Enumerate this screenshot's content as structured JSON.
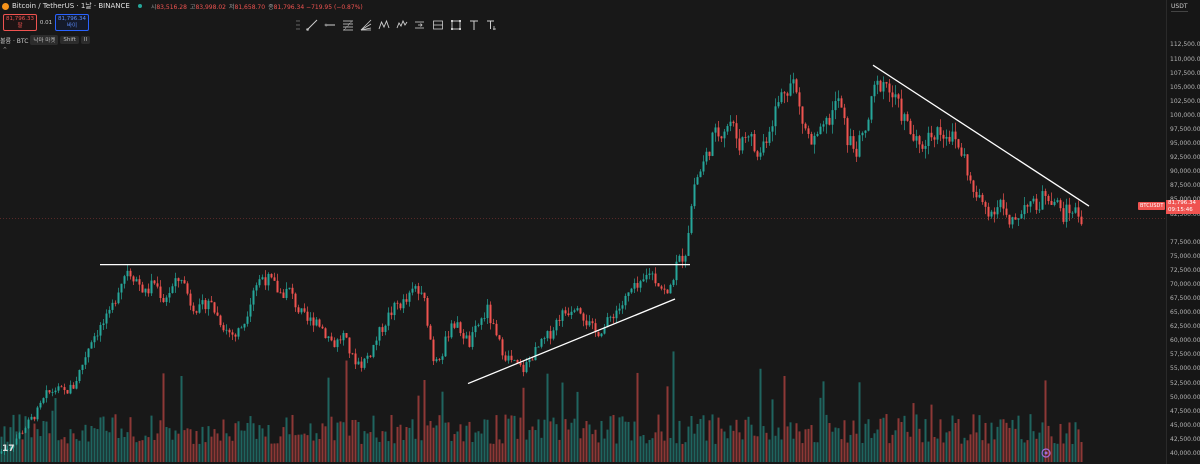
{
  "header": {
    "symbol": "Bitcoin / TetherUS · 1날 · BINANCE",
    "ohlc": [
      {
        "key": "시",
        "value": "83,516.28"
      },
      {
        "key": "고",
        "value": "83,998.02"
      },
      {
        "key": "저",
        "value": "81,658.70"
      },
      {
        "key": "종",
        "value": "81,796.34 −719.95 (−0.87%)"
      }
    ]
  },
  "order": {
    "sell_price": "81,796.33",
    "sell_label": "팔",
    "spread": "0.01",
    "buy_price": "81,796.34",
    "buy_label": "바이"
  },
  "indicator": {
    "name": "볼륨 · BTC",
    "chips": [
      "낙마 마켓",
      "Shift",
      "II"
    ]
  },
  "toolbar": {
    "tools": [
      "trend-line-tool",
      "horizontal-ray-tool",
      "fib-retracement-tool",
      "gann-fan-tool",
      "pattern-tool",
      "elliott-wave-tool",
      "arrow-marker-tool",
      "price-range-tool",
      "rectangle-tool",
      "text-tool",
      "anchored-text-tool"
    ]
  },
  "price_axis": {
    "currency": "USDT",
    "labels": [
      "112,500.00",
      "110,000.00",
      "107,500.00",
      "105,000.00",
      "102,500.00",
      "100,000.00",
      "97,500.00",
      "95,000.00",
      "92,500.00",
      "90,000.00",
      "87,500.00",
      "85,000.00",
      "82,500.00",
      "77,500.00",
      "75,000.00",
      "72,500.00",
      "70,000.00",
      "67,500.00",
      "65,000.00",
      "62,500.00",
      "60,000.00",
      "57,500.00",
      "55,000.00",
      "52,500.00",
      "50,000.00",
      "47,500.00",
      "45,000.00",
      "42,500.00",
      "40,000.00"
    ]
  },
  "price_tag": {
    "symbol": "BTCUSDT",
    "price": "81,796.34",
    "countdown": "09:15:46"
  },
  "logo": "17",
  "colors": {
    "up": "#26a69a",
    "down": "#ef5350",
    "background": "#181818",
    "drawing": "#ffffff"
  },
  "chart_data": {
    "type": "candlestick",
    "pair": "BTC/USDT",
    "interval": "1D",
    "ylim": [
      40000,
      114000
    ],
    "last_price": 81796.34,
    "close_path": [
      [
        0,
        40500
      ],
      [
        3,
        41500
      ],
      [
        6,
        43500
      ],
      [
        9,
        45500
      ],
      [
        12,
        47500
      ],
      [
        15,
        50500
      ],
      [
        18,
        51500
      ],
      [
        21,
        51000
      ],
      [
        24,
        52000
      ],
      [
        27,
        56000
      ],
      [
        30,
        60500
      ],
      [
        33,
        62500
      ],
      [
        36,
        64500
      ],
      [
        39,
        69500
      ],
      [
        42,
        73000
      ],
      [
        45,
        71000
      ],
      [
        48,
        68500
      ],
      [
        51,
        70500
      ],
      [
        54,
        67500
      ],
      [
        57,
        69500
      ],
      [
        60,
        71500
      ],
      [
        63,
        67000
      ],
      [
        66,
        65500
      ],
      [
        69,
        67500
      ],
      [
        72,
        64500
      ],
      [
        75,
        62000
      ],
      [
        78,
        61000
      ],
      [
        81,
        63500
      ],
      [
        84,
        69500
      ],
      [
        87,
        71500
      ],
      [
        90,
        70500
      ],
      [
        93,
        68500
      ],
      [
        96,
        69000
      ],
      [
        99,
        65500
      ],
      [
        102,
        63500
      ],
      [
        105,
        64000
      ],
      [
        108,
        61500
      ],
      [
        111,
        59500
      ],
      [
        114,
        61000
      ],
      [
        117,
        57000
      ],
      [
        120,
        56000
      ],
      [
        123,
        58000
      ],
      [
        126,
        61500
      ],
      [
        129,
        64500
      ],
      [
        132,
        66500
      ],
      [
        135,
        67000
      ],
      [
        138,
        69500
      ],
      [
        141,
        67000
      ],
      [
        144,
        57000
      ],
      [
        147,
        58000
      ],
      [
        150,
        63500
      ],
      [
        153,
        62000
      ],
      [
        156,
        59500
      ],
      [
        159,
        63000
      ],
      [
        162,
        65500
      ],
      [
        165,
        60500
      ],
      [
        168,
        57500
      ],
      [
        171,
        56000
      ],
      [
        174,
        55000
      ],
      [
        177,
        57500
      ],
      [
        180,
        59500
      ],
      [
        183,
        61500
      ],
      [
        186,
        64500
      ],
      [
        189,
        65500
      ],
      [
        192,
        67000
      ],
      [
        195,
        63500
      ],
      [
        198,
        61500
      ],
      [
        201,
        62500
      ],
      [
        204,
        65000
      ],
      [
        207,
        66500
      ],
      [
        210,
        69000
      ],
      [
        213,
        69500
      ],
      [
        216,
        72500
      ],
      [
        219,
        70500
      ],
      [
        222,
        68000
      ],
      [
        225,
        73500
      ],
      [
        228,
        76000
      ],
      [
        231,
        88000
      ],
      [
        234,
        91500
      ],
      [
        237,
        96000
      ],
      [
        240,
        97500
      ],
      [
        243,
        99000
      ],
      [
        246,
        95000
      ],
      [
        249,
        97500
      ],
      [
        252,
        92500
      ],
      [
        255,
        96500
      ],
      [
        258,
        101000
      ],
      [
        261,
        105000
      ],
      [
        264,
        106000
      ],
      [
        267,
        99000
      ],
      [
        270,
        95000
      ],
      [
        273,
        96500
      ],
      [
        276,
        99500
      ],
      [
        279,
        103000
      ],
      [
        282,
        96000
      ],
      [
        285,
        94000
      ],
      [
        288,
        97000
      ],
      [
        291,
        104500
      ],
      [
        294,
        106500
      ],
      [
        297,
        103500
      ],
      [
        300,
        100500
      ],
      [
        303,
        97000
      ],
      [
        306,
        94000
      ],
      [
        309,
        96500
      ],
      [
        312,
        97500
      ],
      [
        315,
        97000
      ],
      [
        318,
        95500
      ],
      [
        321,
        92500
      ],
      [
        324,
        86000
      ],
      [
        327,
        84500
      ],
      [
        330,
        83000
      ],
      [
        333,
        85000
      ],
      [
        336,
        80000
      ],
      [
        339,
        82500
      ],
      [
        342,
        85000
      ],
      [
        345,
        83500
      ],
      [
        348,
        86500
      ],
      [
        351,
        85000
      ],
      [
        354,
        82500
      ],
      [
        357,
        83500
      ],
      [
        360,
        81796
      ]
    ],
    "annotations": [
      {
        "type": "horizontal-resistance",
        "price": 73600
      },
      {
        "type": "rising-support",
        "from": [
          156,
          52500
        ],
        "to": [
          225,
          67500
        ]
      },
      {
        "type": "falling-resistance",
        "from": [
          291,
          109000
        ],
        "to": [
          363,
          84000
        ]
      }
    ]
  }
}
